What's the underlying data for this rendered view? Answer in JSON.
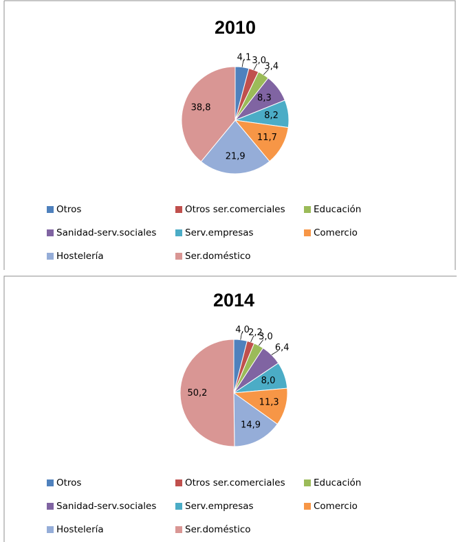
{
  "chart_data": [
    {
      "type": "pie",
      "title": "2010",
      "categories": [
        "Otros",
        "Otros ser.comerciales",
        "Educación",
        "Sanidad-serv.sociales",
        "Serv.empresas",
        "Comercio",
        "Hostelería",
        "Ser.doméstico"
      ],
      "values": [
        4.1,
        3.0,
        3.4,
        8.3,
        8.2,
        11.7,
        21.9,
        38.8
      ],
      "value_labels": [
        "4,1",
        "3,0",
        "3,4",
        "8,3",
        "8,2",
        "11,7",
        "21,9",
        "38,8"
      ],
      "colors": [
        "#4f81bd",
        "#c0504d",
        "#9bbb59",
        "#8064a2",
        "#4bacc6",
        "#f79646",
        "#95add8",
        "#d99694"
      ]
    },
    {
      "type": "pie",
      "title": "2014",
      "categories": [
        "Otros",
        "Otros ser.comerciales",
        "Educación",
        "Sanidad-serv.sociales",
        "Serv.empresas",
        "Comercio",
        "Hostelería",
        "Ser.doméstico"
      ],
      "values": [
        4.0,
        2.2,
        3.0,
        6.4,
        8.0,
        11.3,
        14.9,
        50.2
      ],
      "value_labels": [
        "4,0",
        "2,2",
        "3,0",
        "6,4",
        "8,0",
        "11,3",
        "14,9",
        "50,2"
      ],
      "colors": [
        "#4f81bd",
        "#c0504d",
        "#9bbb59",
        "#8064a2",
        "#4bacc6",
        "#f79646",
        "#95add8",
        "#d99694"
      ]
    }
  ]
}
